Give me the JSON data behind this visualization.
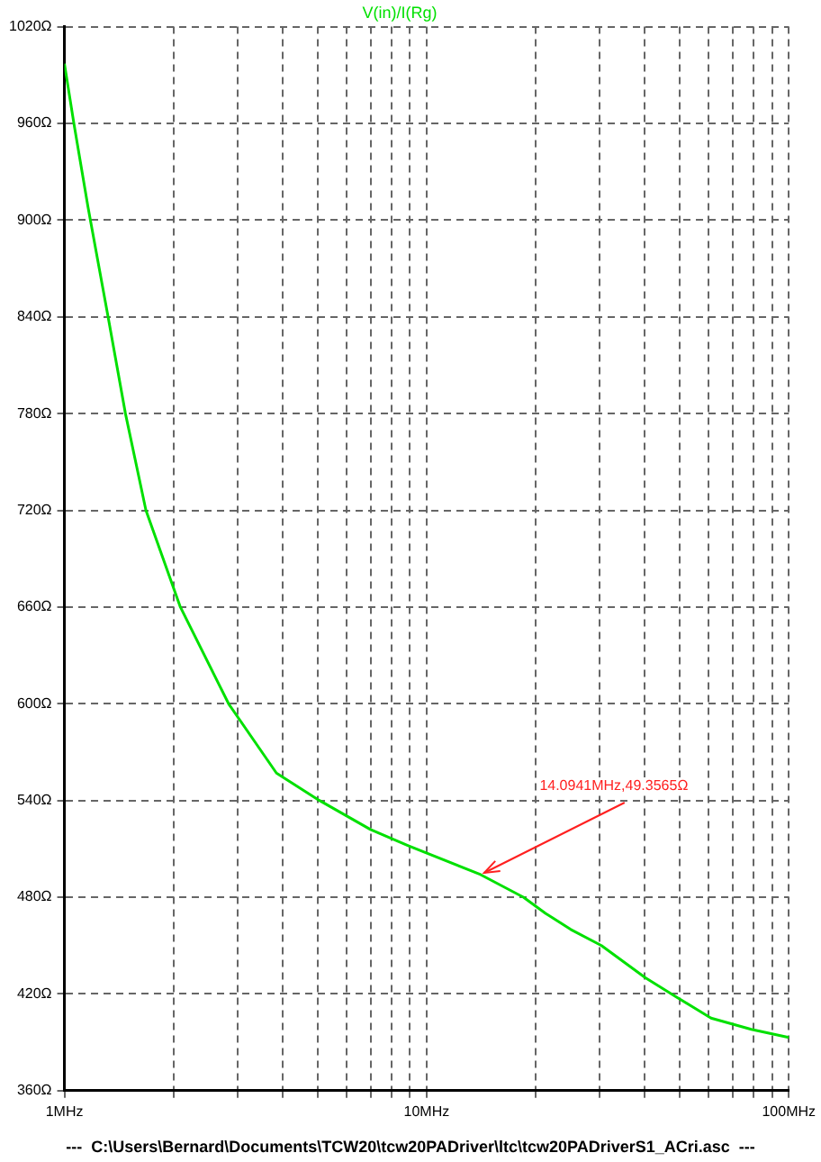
{
  "chart_data": {
    "type": "line",
    "title": "V(in)/I(Rg)",
    "log": "x",
    "x": [
      1,
      1.062,
      1.162,
      1.32,
      1.474,
      1.679,
      2.09,
      2.84,
      3.85,
      5.06,
      7.0,
      8.9,
      14.0941,
      18.5,
      21.3,
      25,
      30.4,
      40.2,
      49,
      61,
      78.8,
      100
    ],
    "series": [
      {
        "color": "#00e000",
        "values": [
          997,
          960,
          908,
          840,
          780,
          720,
          660,
          600,
          557,
          540,
          522,
          512,
          494,
          480,
          470,
          460,
          450,
          430,
          418,
          405,
          398,
          393
        ]
      }
    ],
    "xlim": [
      1,
      100
    ],
    "xticks": [
      {
        "value": 1,
        "label": "1MHz"
      },
      {
        "value": 2,
        "label": null
      },
      {
        "value": 3,
        "label": null
      },
      {
        "value": 4,
        "label": null
      },
      {
        "value": 5,
        "label": null
      },
      {
        "value": 6,
        "label": null
      },
      {
        "value": 7,
        "label": null
      },
      {
        "value": 8,
        "label": null
      },
      {
        "value": 9,
        "label": null
      },
      {
        "value": 10,
        "label": "10MHz"
      },
      {
        "value": 20,
        "label": null
      },
      {
        "value": 30,
        "label": null
      },
      {
        "value": 40,
        "label": null
      },
      {
        "value": 50,
        "label": null
      },
      {
        "value": 60,
        "label": null
      },
      {
        "value": 70,
        "label": null
      },
      {
        "value": 80,
        "label": null
      },
      {
        "value": 90,
        "label": null
      },
      {
        "value": 100,
        "label": "100MHz"
      }
    ],
    "ylim": [
      360,
      1020
    ],
    "yticks": [
      {
        "value": 360,
        "label": "360Ω"
      },
      {
        "value": 420,
        "label": "420Ω"
      },
      {
        "value": 480,
        "label": "480Ω"
      },
      {
        "value": 540,
        "label": "540Ω"
      },
      {
        "value": 600,
        "label": "600Ω"
      },
      {
        "value": 660,
        "label": "660Ω"
      },
      {
        "value": 720,
        "label": "720Ω"
      },
      {
        "value": 780,
        "label": "780Ω"
      },
      {
        "value": 840,
        "label": "840Ω"
      },
      {
        "value": 900,
        "label": "900Ω"
      },
      {
        "value": 960,
        "label": "960Ω"
      },
      {
        "value": 1020,
        "label": "1020Ω"
      }
    ],
    "grid": true,
    "line_style": "solid",
    "marker": "none",
    "legend": false,
    "annotations": [
      {
        "text": "14.0941MHz,49.3565Ω",
        "x": 14.0941,
        "y": 494
      },
      "---  C:\\Users\\Bernard\\Documents\\TCW20\\tcw20PADriver\\ltc\\tcw20PADriverS1_ACri.asc  ---"
    ]
  }
}
